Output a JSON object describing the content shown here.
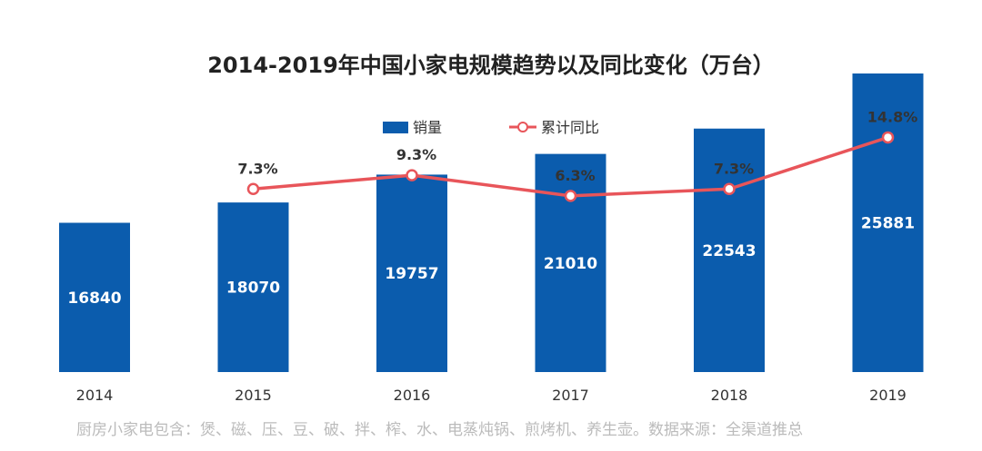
{
  "chart_data": {
    "type": "bar",
    "title": "2014-2019年中国小家电规模趋势以及同比变化（万台）",
    "categories": [
      "2014",
      "2015",
      "2016",
      "2017",
      "2018",
      "2019"
    ],
    "series": [
      {
        "name": "销量",
        "type": "bar",
        "values": [
          16840,
          18070,
          19757,
          21010,
          22543,
          25881
        ],
        "color": "#0b5cad"
      },
      {
        "name": "累计同比",
        "type": "line",
        "values": [
          null,
          7.3,
          9.3,
          6.3,
          7.3,
          14.8
        ],
        "labels": [
          "",
          "7.3%",
          "9.3%",
          "6.3%",
          "7.3%",
          "14.8%"
        ],
        "color": "#e8555a"
      }
    ],
    "legend_position": "top-center",
    "grid": false
  },
  "footer": {
    "source": "厨房小家电包含：煲、磁、压、豆、破、拌、榨、水、电蒸炖锅、煎烤机、养生壶。数据来源：全渠道推总"
  }
}
